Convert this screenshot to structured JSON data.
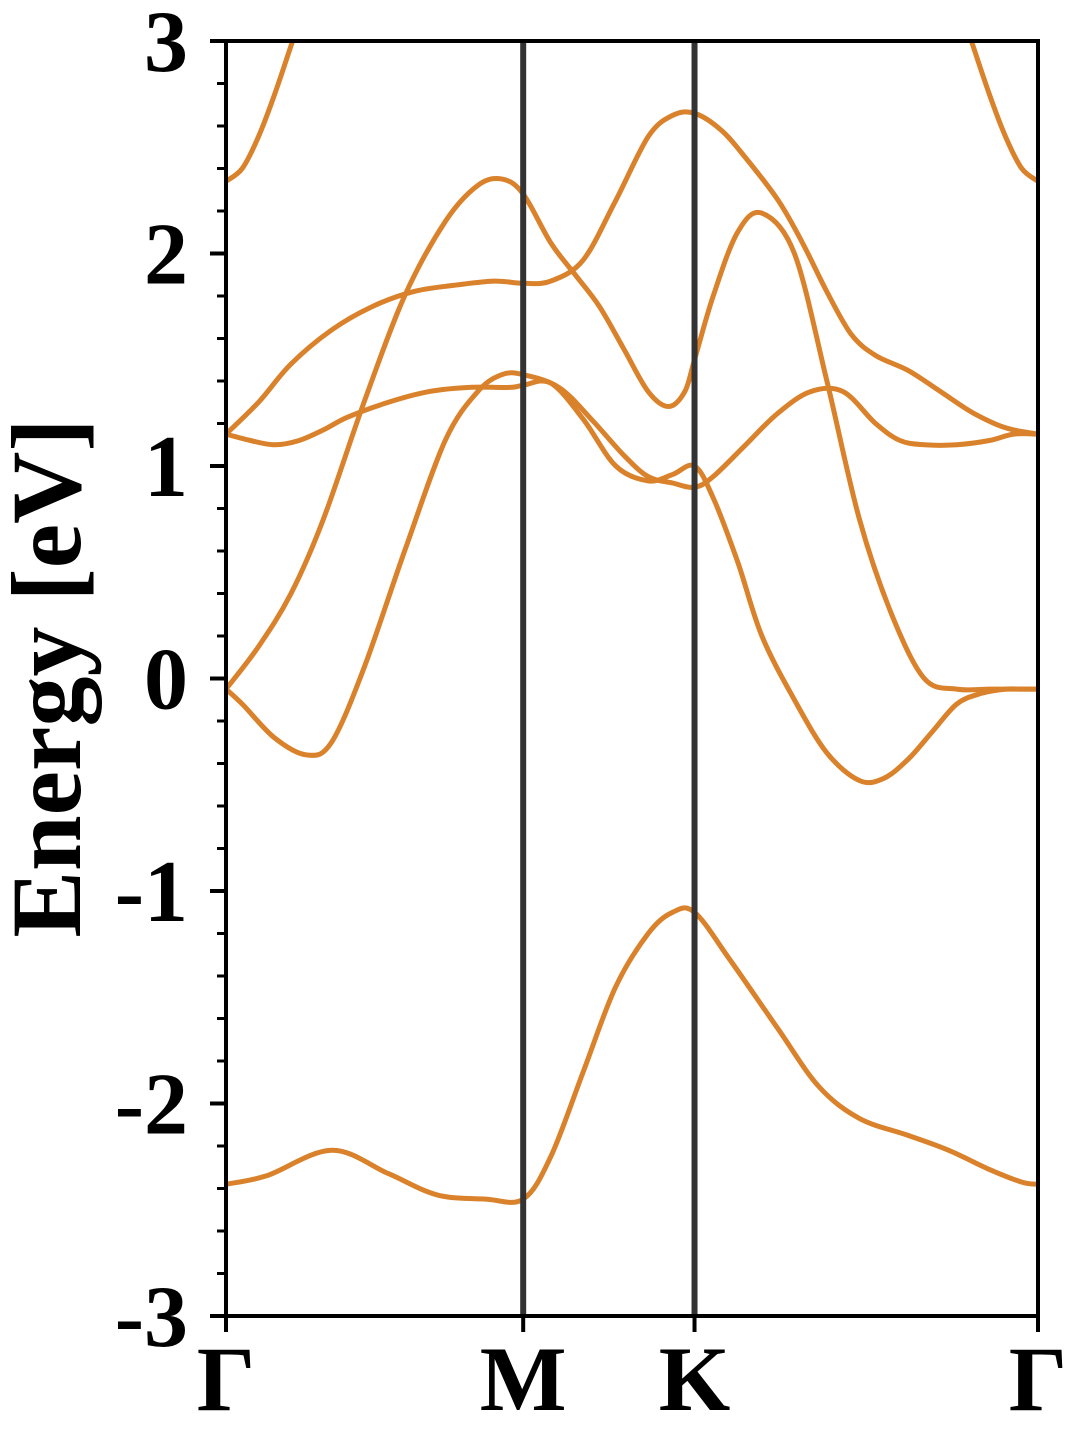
{
  "chart_data": {
    "type": "line",
    "title": "",
    "xlabel": "",
    "ylabel": "Energy [eV]",
    "ylim": [
      -3,
      3
    ],
    "xlim": [
      0,
      1
    ],
    "yticks": [
      -3,
      -2,
      -1,
      0,
      1,
      2,
      3
    ],
    "ytick_labels": [
      "-3",
      "-2",
      "-1",
      "0",
      "1",
      "2",
      "3"
    ],
    "minor_ytick_step": 0.2,
    "high_symmetry_points": [
      {
        "label": "Γ",
        "x": 0.0
      },
      {
        "label": "M",
        "x": 0.366
      },
      {
        "label": "K",
        "x": 0.577
      },
      {
        "label": "Γ",
        "x": 1.0
      }
    ],
    "grid": false,
    "colors": {
      "band": "#d9822b",
      "kpath_line": "#333333",
      "axis": "#000000"
    },
    "series": [
      {
        "x": [
          0.0,
          0.05,
          0.13,
          0.2,
          0.26,
          0.32,
          0.366,
          0.4,
          0.44,
          0.48,
          0.52,
          0.55,
          0.577,
          0.62,
          0.68,
          0.73,
          0.78,
          0.84,
          0.89,
          0.94,
          0.98,
          1.0
        ],
        "values": [
          -2.38,
          -2.34,
          -2.22,
          -2.33,
          -2.43,
          -2.45,
          -2.45,
          -2.25,
          -1.85,
          -1.45,
          -1.2,
          -1.1,
          -1.1,
          -1.32,
          -1.65,
          -1.92,
          -2.07,
          -2.15,
          -2.22,
          -2.31,
          -2.37,
          -2.38
        ]
      },
      {
        "x": [
          0.0,
          0.02,
          0.06,
          0.1,
          0.13,
          0.17,
          0.22,
          0.27,
          0.31,
          0.34,
          0.366,
          0.41,
          0.45,
          0.49,
          0.52,
          0.55,
          0.577,
          0.6,
          0.64,
          0.68,
          0.72,
          0.76,
          0.8,
          0.83,
          0.86,
          0.9,
          0.94,
          0.97,
          1.0
        ],
        "values": [
          -0.05,
          -0.12,
          -0.28,
          -0.36,
          -0.3,
          0.05,
          0.6,
          1.12,
          1.35,
          1.43,
          1.43,
          1.37,
          1.22,
          1.05,
          0.95,
          0.92,
          0.9,
          0.95,
          1.1,
          1.25,
          1.35,
          1.35,
          1.2,
          1.12,
          1.1,
          1.1,
          1.12,
          1.15,
          1.15
        ]
      },
      {
        "x": [
          0.0,
          0.04,
          0.08,
          0.12,
          0.17,
          0.22,
          0.27,
          0.31,
          0.34,
          0.366,
          0.4,
          0.43,
          0.46,
          0.49,
          0.52,
          0.545,
          0.565,
          0.577,
          0.6,
          0.63,
          0.66,
          0.7,
          0.74,
          0.78,
          0.82,
          0.86,
          0.9,
          0.94,
          0.97,
          1.0
        ],
        "values": [
          -0.05,
          0.15,
          0.4,
          0.75,
          1.3,
          1.8,
          2.15,
          2.32,
          2.35,
          2.28,
          2.05,
          1.9,
          1.75,
          1.55,
          1.35,
          1.28,
          1.35,
          1.5,
          1.8,
          2.1,
          2.19,
          2.0,
          1.4,
          0.75,
          0.3,
          0.0,
          -0.05,
          -0.05,
          -0.05,
          -0.05
        ]
      },
      {
        "x": [
          0.0,
          0.03,
          0.06,
          0.09,
          0.12,
          0.15,
          0.2,
          0.25,
          0.3,
          0.35,
          0.366,
          0.4,
          0.44,
          0.48,
          0.52,
          0.55,
          0.577,
          0.6,
          0.63,
          0.66,
          0.7,
          0.74,
          0.78,
          0.81,
          0.84,
          0.87,
          0.9,
          0.93,
          0.96,
          0.98,
          1.0
        ],
        "values": [
          1.15,
          1.12,
          1.1,
          1.12,
          1.17,
          1.23,
          1.3,
          1.35,
          1.37,
          1.37,
          1.38,
          1.39,
          1.22,
          1.0,
          0.93,
          0.96,
          1.0,
          0.85,
          0.55,
          0.2,
          -0.1,
          -0.35,
          -0.48,
          -0.47,
          -0.38,
          -0.25,
          -0.12,
          -0.07,
          -0.05,
          -0.05,
          -0.05
        ]
      },
      {
        "x": [
          0.0,
          0.04,
          0.08,
          0.13,
          0.18,
          0.23,
          0.28,
          0.33,
          0.366,
          0.4,
          0.44,
          0.48,
          0.52,
          0.55,
          0.577,
          0.61,
          0.64,
          0.68,
          0.71,
          0.74,
          0.77,
          0.8,
          0.84,
          0.88,
          0.92,
          0.96,
          1.0
        ],
        "values": [
          1.15,
          1.3,
          1.48,
          1.64,
          1.75,
          1.82,
          1.85,
          1.87,
          1.86,
          1.87,
          1.97,
          2.25,
          2.55,
          2.65,
          2.66,
          2.58,
          2.45,
          2.25,
          2.05,
          1.82,
          1.62,
          1.52,
          1.45,
          1.35,
          1.25,
          1.18,
          1.15
        ]
      },
      {
        "x": [
          0.918,
          0.94,
          0.96,
          0.98,
          1.0
        ],
        "values": [
          3.0,
          2.75,
          2.55,
          2.4,
          2.34
        ]
      },
      {
        "x": [
          0.0,
          0.02,
          0.04,
          0.06,
          0.082
        ],
        "values": [
          2.34,
          2.4,
          2.55,
          2.75,
          3.0
        ]
      }
    ]
  }
}
